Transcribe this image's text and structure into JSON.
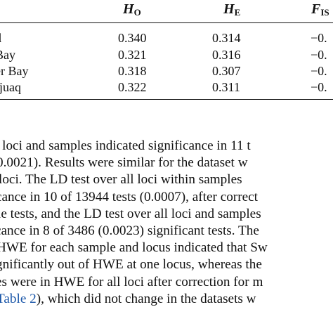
{
  "table": {
    "headers": {
      "ho": {
        "main": "H",
        "sub": "O"
      },
      "he": {
        "main": "H",
        "sub": "E"
      },
      "fis": {
        "main": "F",
        "sub": "IS"
      }
    },
    "rows": [
      {
        "sample": "d",
        "ho": "0.340",
        "he": "0.314",
        "fis": "−0."
      },
      {
        "sample": "Bay",
        "ho": "0.321",
        "he": "0.316",
        "fis": "−0."
      },
      {
        "sample": "er Bay",
        "ho": "0.318",
        "he": "0.307",
        "fis": "−0."
      },
      {
        "sample": "rjuaq",
        "ho": "0.322",
        "he": "0.311",
        "fis": "−0."
      }
    ]
  },
  "paragraph": {
    "lines": [
      {
        "text": "l loci and samples indicated significance in 11 t"
      },
      {
        "text": "0.0021). Results were similar for the dataset w"
      },
      {
        "text": "loci. The LD test over all loci within samples"
      },
      {
        "text": "cance in 10 of 13944 tests (0.0007), after correct"
      },
      {
        "text": "le tests, and the LD test over all loci and samples"
      },
      {
        "text": "cance in 8 of 3486 (0.0023) significant tests. The"
      },
      {
        "text": "HWE for each sample and locus indicated that Sw"
      },
      {
        "text": "gnificantly out of HWE at one locus, whereas the"
      },
      {
        "text": "es were in HWE for all loci after correction for m"
      }
    ],
    "last_line": {
      "link_text": "Table 2",
      "rest_text": "), which did not change in the datasets w"
    }
  }
}
